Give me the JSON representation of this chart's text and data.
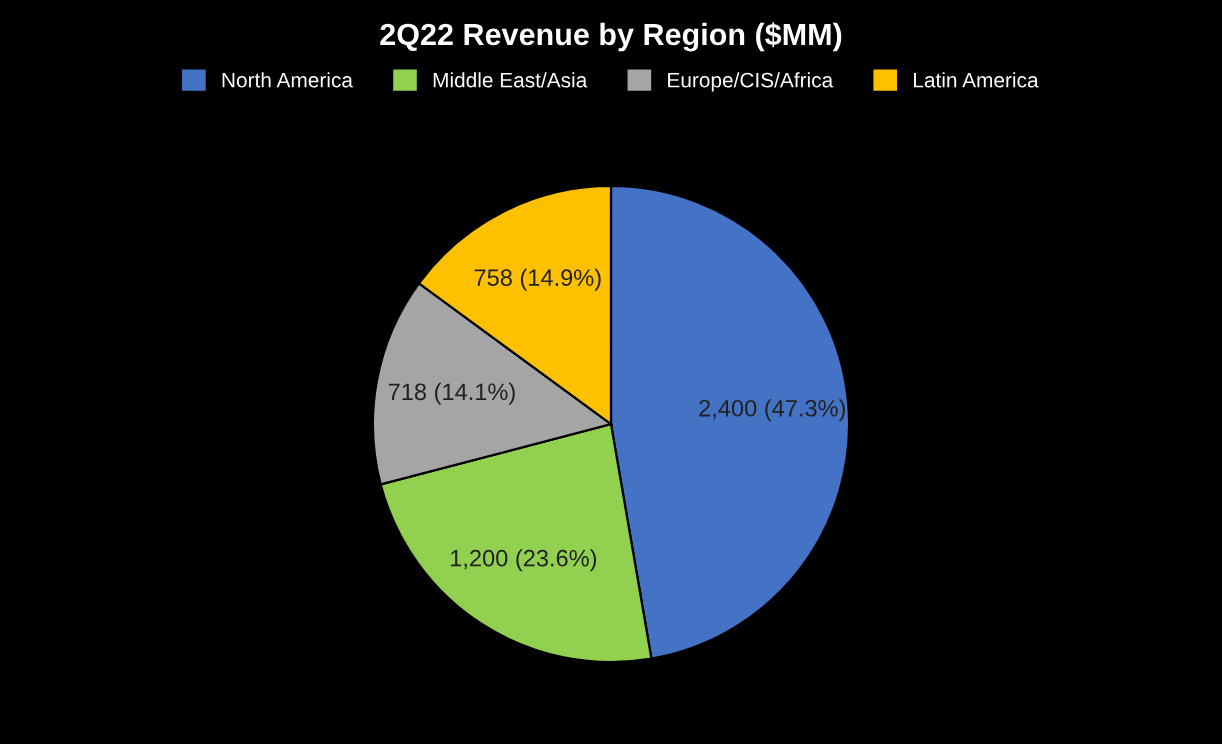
{
  "chart_data": {
    "type": "pie",
    "title": "2Q22 Revenue by Region ($MM)",
    "categories": [
      "North America",
      "Middle East/Asia",
      "Europe/CIS/Africa",
      "Latin America"
    ],
    "values": [
      2400,
      1200,
      718,
      758
    ],
    "colors": [
      "#4472c4",
      "#92d050",
      "#a5a5a5",
      "#ffc000"
    ],
    "value_labels": [
      "2,400 (47.3%)",
      "1,200 (23.6%)",
      "718 (14.1%)",
      "758 (14.9%)"
    ],
    "legend": "top"
  }
}
